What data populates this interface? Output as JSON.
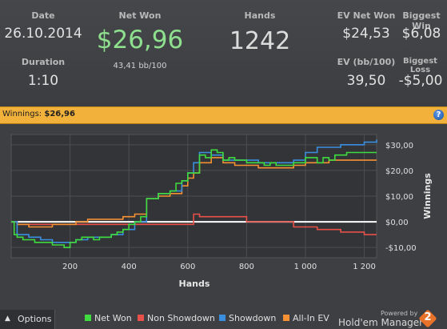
{
  "stats": {
    "date_label": "Date",
    "date_value": "26.10.2014",
    "duration_label": "Duration",
    "duration_value": "1:10",
    "net_won_label": "Net Won",
    "net_won_value": "$26,96",
    "net_won_sub": "43,41 bb/100",
    "hands_label": "Hands",
    "hands_value": "1242",
    "ev_net_won_label": "EV Net Won",
    "ev_net_won_value": "$24,53",
    "biggest_win_label": "Biggest Win",
    "biggest_win_value": "$6,08",
    "ev_bb_label": "EV (bb/100)",
    "ev_bb_value": "39,50",
    "biggest_loss_label": "Biggest Loss",
    "biggest_loss_value": "-$5,00"
  },
  "banner": {
    "label": "Winnings:",
    "value": "$26,96",
    "help_icon": "?"
  },
  "colors": {
    "net_won": "#3fdb3f",
    "non_showdown": "#e8504a",
    "showdown": "#3a8fe0",
    "all_in_ev": "#f59033",
    "banner": "#f1b13a",
    "net_won_value": "#8ee08e"
  },
  "chart_data": {
    "type": "line",
    "title": "",
    "xlabel": "Hands",
    "ylabel": "Winnings",
    "xlim": [
      0,
      1242
    ],
    "ylim": [
      -14,
      34
    ],
    "x_ticks": [
      200,
      400,
      600,
      800,
      1000,
      1200
    ],
    "x_tick_labels": [
      "200",
      "400",
      "600",
      "800",
      "1 000",
      "1 200"
    ],
    "y_ticks": [
      30,
      20,
      10,
      0,
      -10
    ],
    "y_tick_labels": [
      "$30,00",
      "$20,00",
      "$10,00",
      "$0,00",
      "-$10,00"
    ],
    "grid": true,
    "legend_position": "bottom",
    "series": [
      {
        "name": "Net Won",
        "color": "#3fdb3f",
        "x": [
          0,
          10,
          20,
          40,
          60,
          80,
          100,
          120,
          140,
          160,
          180,
          200,
          220,
          240,
          260,
          280,
          300,
          320,
          340,
          360,
          380,
          400,
          420,
          440,
          460,
          480,
          500,
          520,
          540,
          560,
          580,
          600,
          620,
          640,
          660,
          680,
          700,
          720,
          740,
          760,
          780,
          800,
          820,
          840,
          860,
          880,
          900,
          920,
          940,
          960,
          980,
          1000,
          1020,
          1040,
          1060,
          1080,
          1100,
          1120,
          1140,
          1160,
          1180,
          1200,
          1220,
          1242
        ],
        "y": [
          0,
          -5,
          -6,
          -7,
          -7,
          -8,
          -8,
          -8,
          -9,
          -9,
          -10,
          -8,
          -7,
          -6,
          -6,
          -7,
          -6,
          -6,
          -5,
          -4,
          -3,
          -1,
          0,
          2,
          9,
          9,
          11,
          11,
          12,
          15,
          16,
          19,
          19,
          26,
          25,
          28,
          27,
          24,
          25,
          24,
          24,
          23,
          23,
          23,
          22,
          23,
          22,
          22,
          22,
          23,
          23,
          25,
          25,
          23,
          25,
          24,
          26,
          26,
          27,
          27,
          27,
          27,
          27,
          27
        ]
      },
      {
        "name": "Non Showdown",
        "color": "#e8504a",
        "x": [
          0,
          20,
          60,
          100,
          140,
          180,
          220,
          260,
          300,
          340,
          380,
          420,
          460,
          500,
          540,
          580,
          600,
          620,
          640,
          680,
          720,
          760,
          800,
          840,
          880,
          920,
          960,
          1000,
          1040,
          1080,
          1120,
          1160,
          1200,
          1242
        ],
        "y": [
          0,
          -1,
          -1,
          -1,
          -1,
          -1,
          -1,
          -1,
          -1,
          -1,
          -1,
          -1,
          -1,
          -1,
          -1,
          -1,
          -1,
          3,
          2,
          2,
          2,
          2,
          0,
          0,
          0,
          0,
          -2,
          -2,
          -3,
          -3,
          -4,
          -4,
          -5,
          -5
        ]
      },
      {
        "name": "Showdown",
        "color": "#3a8fe0",
        "x": [
          0,
          20,
          60,
          100,
          140,
          180,
          220,
          260,
          300,
          340,
          380,
          420,
          460,
          500,
          540,
          580,
          600,
          620,
          640,
          680,
          720,
          760,
          800,
          840,
          880,
          920,
          960,
          1000,
          1040,
          1080,
          1120,
          1160,
          1200,
          1242
        ],
        "y": [
          0,
          -5,
          -6,
          -7,
          -8,
          -8,
          -7,
          -6,
          -6,
          -5,
          -3,
          0,
          9,
          11,
          12,
          16,
          19,
          23,
          27,
          26,
          24,
          24,
          24,
          23,
          23,
          23,
          24,
          27,
          29,
          29,
          30,
          30,
          31,
          32
        ]
      },
      {
        "name": "All-In EV",
        "color": "#f59033",
        "x": [
          0,
          20,
          60,
          100,
          140,
          180,
          220,
          260,
          300,
          340,
          380,
          420,
          460,
          500,
          540,
          580,
          600,
          620,
          640,
          680,
          720,
          760,
          800,
          840,
          880,
          920,
          960,
          1000,
          1040,
          1080,
          1120,
          1160,
          1200,
          1242
        ],
        "y": [
          0,
          -1,
          -2,
          -2,
          -1,
          -1,
          0,
          1,
          1,
          1,
          2,
          3,
          9,
          10,
          11,
          14,
          17,
          19,
          23,
          25,
          23,
          22,
          22,
          21,
          21,
          21,
          22,
          23,
          23,
          24,
          24,
          24,
          24,
          24
        ]
      }
    ]
  },
  "footer": {
    "options_label": "Options",
    "options_icon": "chevron-up-icon",
    "legend": [
      "Net Won",
      "Non Showdown",
      "Showdown",
      "All-In EV"
    ],
    "powered_by": "Powered by",
    "brand": "Hold'em Manager",
    "brand_number": "2"
  }
}
